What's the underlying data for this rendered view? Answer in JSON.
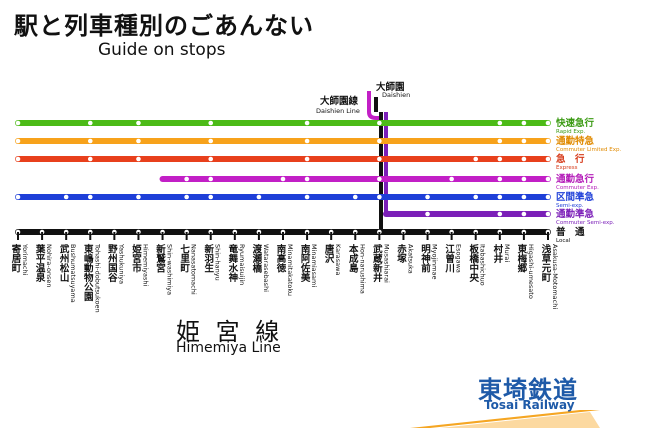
{
  "header": {
    "title_ja": "駅と列車種別のごあんない",
    "title_en": "Guide on stops"
  },
  "branches": {
    "daishien_line": {
      "name_ja": "大師園線",
      "name_en": "Daishien Line"
    },
    "daishien_station": {
      "name_ja": "大師園",
      "name_en": "Daishien"
    }
  },
  "services": [
    {
      "id": "rapid",
      "name_ja": "快速急行",
      "name_en": "Rapid Exp.",
      "color": "#4cbb17",
      "text_color": "#3a9a12",
      "from": 0,
      "to": 29
    },
    {
      "id": "cle",
      "name_ja": "通勤特急",
      "name_en": "Commuter Limited Exp.",
      "color": "#f7a21b",
      "text_color": "#e08a00",
      "from": 0,
      "to": 29
    },
    {
      "id": "express",
      "name_ja": "急　行",
      "name_en": "Express",
      "color": "#e8401c",
      "text_color": "#d63a1a",
      "from": 0,
      "to": 29
    },
    {
      "id": "cexp",
      "name_ja": "通勤急行",
      "name_en": "Commuter Exp.",
      "color": "#c21fc6",
      "text_color": "#b31ab8",
      "from": 6,
      "to": 29
    },
    {
      "id": "semi",
      "name_ja": "区間準急",
      "name_en": "Semi-exp.",
      "color": "#1e3fd8",
      "text_color": "#1e3fd8",
      "from": 0,
      "to": 29
    },
    {
      "id": "csemi",
      "name_ja": "通勤準急",
      "name_en": "Commuter Semi-exp.",
      "color": "#7b1fb8",
      "text_color": "#7b1fb8",
      "from": 20,
      "to": 29
    },
    {
      "id": "local",
      "name_ja": "普　通",
      "name_en": "Local",
      "color": "#111111",
      "text_color": "#111111",
      "from": 0,
      "to": 29
    }
  ],
  "stations": [
    {
      "ja": "寄居町",
      "en": "Yorimachi"
    },
    {
      "ja": "葉平温泉",
      "en": "Nohira-onsen"
    },
    {
      "ja": "武州松山",
      "en": "Bushumatsuyama"
    },
    {
      "ja": "東嶋動物公園",
      "en": "Tohashi-dobutsukoen"
    },
    {
      "ja": "野州国谷",
      "en": "Yashukuniya"
    },
    {
      "ja": "姫宮市",
      "en": "Himemiyashi"
    },
    {
      "ja": "新鷲宮",
      "en": "Shin-washimiya"
    },
    {
      "ja": "七里町",
      "en": "Nanasatomachi"
    },
    {
      "ja": "新羽生",
      "en": "Shin-hanyu"
    },
    {
      "ja": "竜舞水神",
      "en": "Ryumaisuijin"
    },
    {
      "ja": "渡瀬橋",
      "en": "Watarasebashi"
    },
    {
      "ja": "南高徳",
      "en": "Minamitakatoku"
    },
    {
      "ja": "南阿佐美",
      "en": "Minamiasami"
    },
    {
      "ja": "唐沢",
      "en": "Karasawa"
    },
    {
      "ja": "本成島",
      "en": "Hon-narushima"
    },
    {
      "ja": "武蔵新井",
      "en": "Musashiarai"
    },
    {
      "ja": "赤塚",
      "en": "Akatsuka"
    },
    {
      "ja": "明神前",
      "en": "Myojinmae"
    },
    {
      "ja": "江曽川",
      "en": "Esogawa"
    },
    {
      "ja": "板橋中央",
      "en": "Itabashichuo"
    },
    {
      "ja": "村井",
      "en": "Murai"
    },
    {
      "ja": "東梅郷",
      "en": "Higashi-umesato"
    },
    {
      "ja": "浅草元町",
      "en": "Asakusa-Motomachi"
    }
  ],
  "stops": {
    "rapid": [
      0,
      3,
      5,
      8,
      12,
      15,
      20,
      21,
      22
    ],
    "cle": [
      0,
      3,
      5,
      8,
      12,
      15,
      20,
      21,
      22
    ],
    "express": [
      0,
      3,
      5,
      8,
      12,
      15,
      19,
      20,
      21,
      22
    ],
    "cexp": [
      3,
      5,
      7,
      8,
      11,
      12,
      15,
      18,
      20,
      21,
      22
    ],
    "semi": [
      0,
      2,
      3,
      5,
      7,
      8,
      10,
      12,
      14,
      15,
      17,
      19,
      20,
      21,
      22
    ],
    "csemi": [
      17,
      20,
      21,
      22
    ],
    "local": [
      0,
      1,
      2,
      3,
      4,
      5,
      6,
      7,
      8,
      9,
      10,
      11,
      12,
      13,
      14,
      15,
      16,
      17,
      18,
      19,
      20,
      21,
      22
    ]
  },
  "line": {
    "name_ja": "姫 宮 線",
    "name_en": "Himemiya Line"
  },
  "brand": {
    "name_ja": "東埼鉄道",
    "name_en": "Tosai Railway"
  }
}
